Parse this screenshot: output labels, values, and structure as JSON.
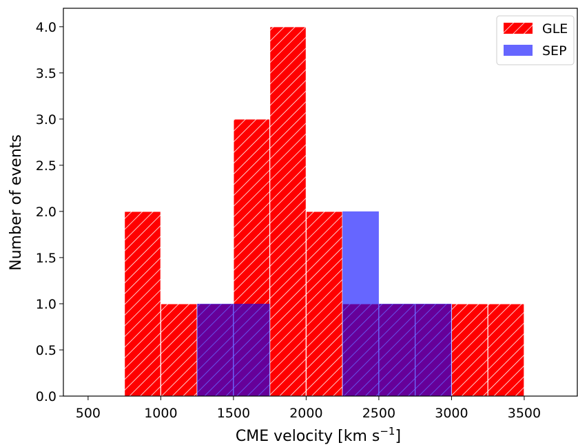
{
  "chart_data": {
    "type": "bar",
    "xlabel": "CME velocity [km s",
    "xlabel_sup": "−1",
    "xlabel_end": "]",
    "ylabel": "Number of events",
    "xlim": [
      330,
      3870
    ],
    "ylim": [
      0,
      4.2
    ],
    "x_ticks": [
      500,
      1000,
      1500,
      2000,
      2500,
      3000,
      3500
    ],
    "y_ticks": [
      "0.0",
      "0.5",
      "1.0",
      "1.5",
      "2.0",
      "2.5",
      "3.0",
      "3.5",
      "4.0"
    ],
    "bin_width": 250,
    "series": [
      {
        "name": "GLE",
        "color": "#ff0000",
        "hatch": "//",
        "bins": [
          {
            "x": 750,
            "value": 2
          },
          {
            "x": 1000,
            "value": 1
          },
          {
            "x": 1250,
            "value": 1
          },
          {
            "x": 1500,
            "value": 3
          },
          {
            "x": 1750,
            "value": 4
          },
          {
            "x": 2000,
            "value": 2
          },
          {
            "x": 2250,
            "value": 1
          },
          {
            "x": 2500,
            "value": 1
          },
          {
            "x": 2750,
            "value": 1
          },
          {
            "x": 3000,
            "value": 1
          },
          {
            "x": 3250,
            "value": 1
          }
        ]
      },
      {
        "name": "SEP",
        "color": "#0000ff",
        "alpha": 0.6,
        "bins": [
          {
            "x": 1250,
            "value": 1
          },
          {
            "x": 1500,
            "value": 1
          },
          {
            "x": 2250,
            "value": 2
          },
          {
            "x": 2500,
            "value": 1
          },
          {
            "x": 2750,
            "value": 1
          }
        ]
      }
    ],
    "legend": {
      "position": "top-right"
    }
  }
}
